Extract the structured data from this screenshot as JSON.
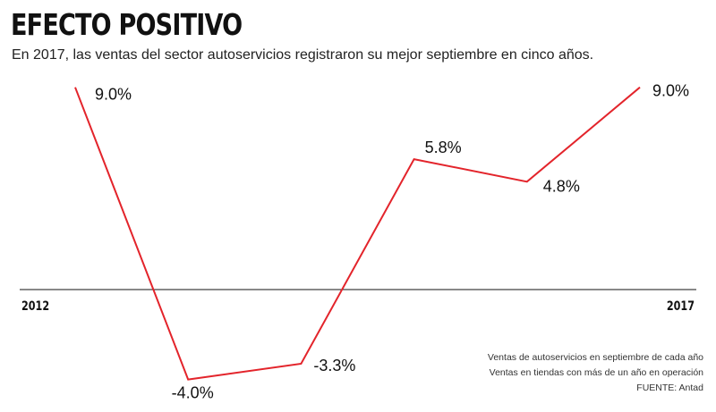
{
  "header": {
    "title": "EFECTO POSITIVO",
    "subtitle": "En 2017, las ventas del sector autoservicios registraron su mejor septiembre en cinco años."
  },
  "notes": {
    "line1": "Ventas de autoservicios en septiembre de cada año",
    "line2": "Ventas en tiendas con más de un año en operación",
    "source": "FUENTE: Antad"
  },
  "colors": {
    "line": "#e3242b",
    "axis": "#111111",
    "text": "#111111"
  },
  "chart_data": {
    "type": "line",
    "x": [
      2012,
      2013,
      2014,
      2015,
      2016,
      2017
    ],
    "x_tick_labels": [
      "2012",
      "2017"
    ],
    "series": [
      {
        "values": [
          9.0,
          -4.0,
          -3.3,
          5.8,
          4.8,
          9.0
        ],
        "labels": [
          "9.0%",
          "-4.0%",
          "-3.3%",
          "5.8%",
          "4.8%",
          "9.0%"
        ]
      }
    ],
    "ylim": [
      -4.5,
      9.5
    ],
    "baseline": 0,
    "grid": false,
    "legend": "none"
  }
}
